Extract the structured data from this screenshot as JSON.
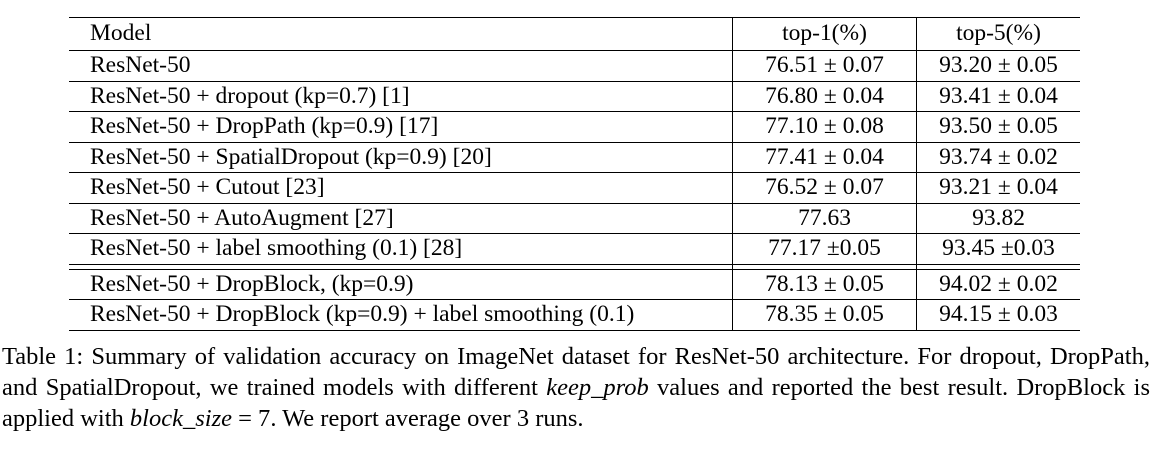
{
  "table": {
    "headers": {
      "model": "Model",
      "top1": "top-1(%)",
      "top5": "top-5(%)"
    },
    "groups": [
      [
        {
          "model": "ResNet-50",
          "top1": "76.51 ± 0.07",
          "top5": "93.20 ± 0.05"
        },
        {
          "model": "ResNet-50 + dropout (kp=0.7) [1]",
          "top1": "76.80 ± 0.04",
          "top5": "93.41 ± 0.04"
        },
        {
          "model": "ResNet-50 + DropPath (kp=0.9) [17]",
          "top1": "77.10 ± 0.08",
          "top5": "93.50 ± 0.05"
        },
        {
          "model": "ResNet-50 + SpatialDropout (kp=0.9) [20]",
          "top1": "77.41 ± 0.04",
          "top5": "93.74 ± 0.02"
        },
        {
          "model": "ResNet-50 + Cutout [23]",
          "top1": "76.52 ± 0.07",
          "top5": "93.21 ± 0.04"
        },
        {
          "model": "ResNet-50 + AutoAugment [27]",
          "top1": "77.63",
          "top5": "93.82"
        },
        {
          "model": "ResNet-50 + label smoothing (0.1) [28]",
          "top1": "77.17 ±0.05",
          "top5": "93.45 ±0.03"
        }
      ],
      [
        {
          "model": "ResNet-50 + DropBlock, (kp=0.9)",
          "top1": "78.13 ± 0.05",
          "top5": "94.02 ± 0.02"
        },
        {
          "model": "ResNet-50 + DropBlock (kp=0.9) + label smoothing (0.1)",
          "top1": "78.35 ± 0.05",
          "top5": "94.15 ± 0.03"
        }
      ]
    ]
  },
  "caption": {
    "lead": "Table 1: Summary of validation accuracy on ImageNet dataset for ResNet-50 architecture. For dropout, DropPath, and SpatialDropout, we trained models with different ",
    "var1": "keep_prob",
    "mid": " values and reported the best result. DropBlock is applied with ",
    "var2": "block_size",
    "eq": " = 7",
    "tail": ". We report average over 3 runs."
  }
}
